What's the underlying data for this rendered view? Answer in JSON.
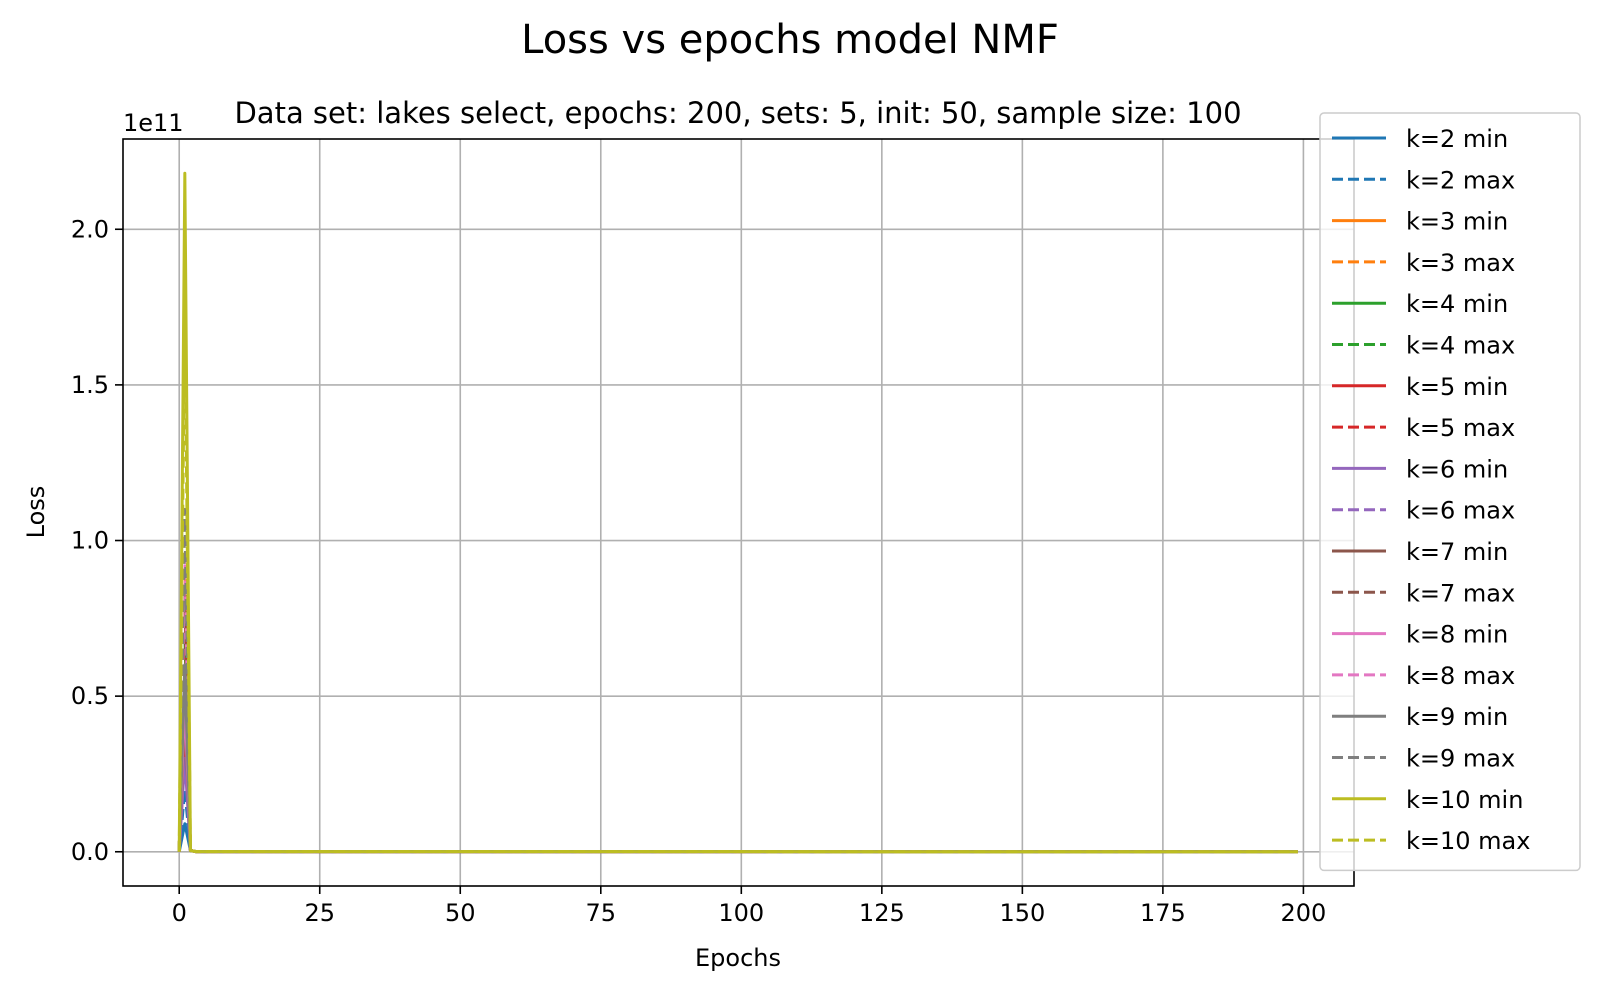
{
  "chart_data": {
    "type": "line",
    "title": "Loss vs epochs model NMF",
    "subtitle": "Data set:  lakes select, epochs: 200, sets: 5, init: 50, sample size: 100",
    "xlabel": "Epochs",
    "ylabel": "Loss",
    "y_offset_label": "1e11",
    "xlim": [
      -10,
      209
    ],
    "ylim": [
      -0.11,
      2.29
    ],
    "y_scale_note": "values in units of 1e11",
    "xticks": [
      0,
      25,
      50,
      75,
      100,
      125,
      150,
      175,
      200
    ],
    "yticks": [
      0.0,
      0.5,
      1.0,
      1.5,
      2.0
    ],
    "xtick_labels": [
      "0",
      "25",
      "50",
      "75",
      "100",
      "125",
      "150",
      "175",
      "200"
    ],
    "ytick_labels": [
      "0.0",
      "0.5",
      "1.0",
      "1.5",
      "2.0"
    ],
    "grid": true,
    "legend_position": "right",
    "x_range": [
      0,
      199
    ],
    "series": [
      {
        "name": "k=2 min",
        "color": "#1f77b4",
        "style": "solid",
        "peak": 0.09
      },
      {
        "name": "k=2 max",
        "color": "#1f77b4",
        "style": "dashed",
        "peak": 0.2
      },
      {
        "name": "k=3 min",
        "color": "#ff7f0e",
        "style": "solid",
        "peak": 0.55
      },
      {
        "name": "k=3 max",
        "color": "#ff7f0e",
        "style": "dashed",
        "peak": 0.9
      },
      {
        "name": "k=4 min",
        "color": "#2ca02c",
        "style": "solid",
        "peak": 0.35
      },
      {
        "name": "k=4 max",
        "color": "#2ca02c",
        "style": "dashed",
        "peak": 0.7
      },
      {
        "name": "k=5 min",
        "color": "#d62728",
        "style": "solid",
        "peak": 0.4
      },
      {
        "name": "k=5 max",
        "color": "#d62728",
        "style": "dashed",
        "peak": 0.8
      },
      {
        "name": "k=6 min",
        "color": "#9467bd",
        "style": "solid",
        "peak": 0.3
      },
      {
        "name": "k=6 max",
        "color": "#9467bd",
        "style": "dashed",
        "peak": 0.6
      },
      {
        "name": "k=7 min",
        "color": "#8c564b",
        "style": "solid",
        "peak": 0.45
      },
      {
        "name": "k=7 max",
        "color": "#8c564b",
        "style": "dashed",
        "peak": 0.85
      },
      {
        "name": "k=8 min",
        "color": "#e377c2",
        "style": "solid",
        "peak": 0.5
      },
      {
        "name": "k=8 max",
        "color": "#e377c2",
        "style": "dashed",
        "peak": 0.95
      },
      {
        "name": "k=9 min",
        "color": "#7f7f7f",
        "style": "solid",
        "peak": 0.6
      },
      {
        "name": "k=9 max",
        "color": "#7f7f7f",
        "style": "dashed",
        "peak": 1.1
      },
      {
        "name": "k=10 min",
        "color": "#bcbd22",
        "style": "solid",
        "peak": 2.18
      },
      {
        "name": "k=10 max",
        "color": "#bcbd22",
        "style": "dashed",
        "peak": 1.75
      }
    ]
  }
}
